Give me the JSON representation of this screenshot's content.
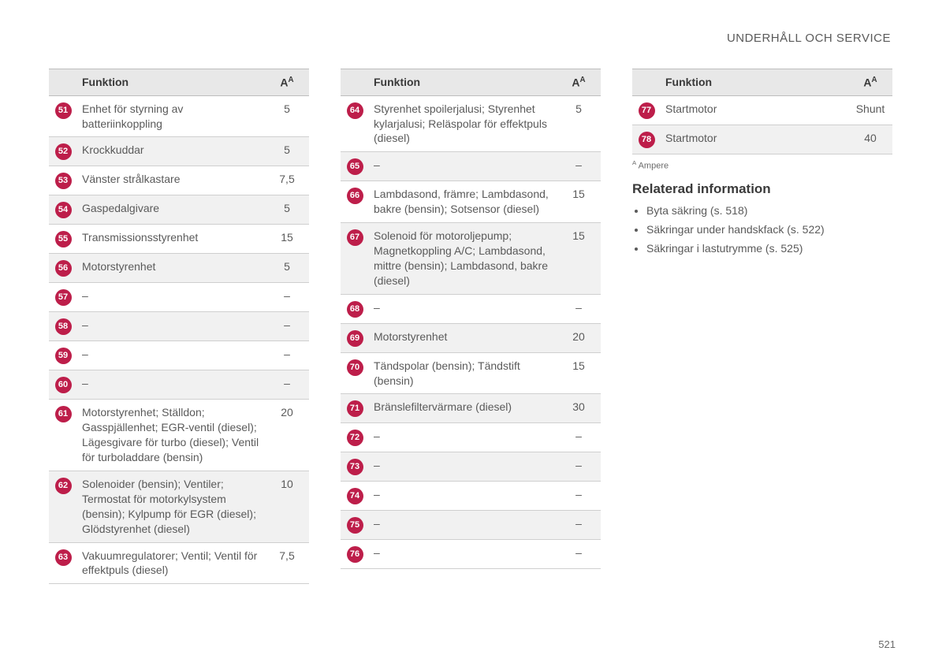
{
  "header": "UNDERHÅLL OCH SERVICE",
  "columns": {
    "funktion": "Funktion",
    "amp_html": "A<sup>A</sup>"
  },
  "footnote": {
    "mark": "A",
    "text": "Ampere"
  },
  "page_number": "521",
  "related": {
    "title": "Relaterad information",
    "items": [
      "Byta säkring (s. 518)",
      "Säkringar under handskfack (s. 522)",
      "Säkringar i lastutrymme (s. 525)"
    ]
  },
  "tables": [
    [
      {
        "n": "51",
        "f": "Enhet för styrning av batteriinkoppling",
        "a": "5",
        "shade": false
      },
      {
        "n": "52",
        "f": "Krockkuddar",
        "a": "5",
        "shade": true
      },
      {
        "n": "53",
        "f": "Vänster strålkastare",
        "a": "7,5",
        "shade": false
      },
      {
        "n": "54",
        "f": "Gaspedalgivare",
        "a": "5",
        "shade": true
      },
      {
        "n": "55",
        "f": "Transmissionsstyrenhet",
        "a": "15",
        "shade": false
      },
      {
        "n": "56",
        "f": "Motorstyrenhet",
        "a": "5",
        "shade": true
      },
      {
        "n": "57",
        "f": "–",
        "a": "–",
        "shade": false
      },
      {
        "n": "58",
        "f": "–",
        "a": "–",
        "shade": true
      },
      {
        "n": "59",
        "f": "–",
        "a": "–",
        "shade": false
      },
      {
        "n": "60",
        "f": "–",
        "a": "–",
        "shade": true
      },
      {
        "n": "61",
        "f": "Motorstyrenhet; Ställdon; Gasspjällenhet; EGR-ventil (diesel); Lägesgivare för turbo (diesel); Ventil för turboladdare (bensin)",
        "a": "20",
        "shade": false
      },
      {
        "n": "62",
        "f": "Solenoider (bensin); Ventiler; Termostat för motorkylsystem (bensin); Kylpump för EGR (diesel); Glödstyrenhet (diesel)",
        "a": "10",
        "shade": true
      },
      {
        "n": "63",
        "f": "Vakuumregulatorer; Ventil; Ventil för effektpuls (diesel)",
        "a": "7,5",
        "shade": false
      }
    ],
    [
      {
        "n": "64",
        "f": "Styrenhet spoilerjalusi; Styrenhet kylarjalusi; Reläspolar för effektpuls (diesel)",
        "a": "5",
        "shade": false
      },
      {
        "n": "65",
        "f": "–",
        "a": "–",
        "shade": true
      },
      {
        "n": "66",
        "f": "Lambdasond, främre; Lambdasond, bakre (bensin); Sotsensor (diesel)",
        "a": "15",
        "shade": false
      },
      {
        "n": "67",
        "f": "Solenoid för motoroljepump; Magnetkoppling A/C; Lambdasond, mittre (bensin); Lambdasond, bakre (diesel)",
        "a": "15",
        "shade": true
      },
      {
        "n": "68",
        "f": "–",
        "a": "–",
        "shade": false
      },
      {
        "n": "69",
        "f": "Motorstyrenhet",
        "a": "20",
        "shade": true
      },
      {
        "n": "70",
        "f": "Tändspolar (bensin); Tändstift (bensin)",
        "a": "15",
        "shade": false
      },
      {
        "n": "71",
        "f": "Bränslefiltervärmare (diesel)",
        "a": "30",
        "shade": true
      },
      {
        "n": "72",
        "f": "–",
        "a": "–",
        "shade": false
      },
      {
        "n": "73",
        "f": "–",
        "a": "–",
        "shade": true
      },
      {
        "n": "74",
        "f": "–",
        "a": "–",
        "shade": false
      },
      {
        "n": "75",
        "f": "–",
        "a": "–",
        "shade": true
      },
      {
        "n": "76",
        "f": "–",
        "a": "–",
        "shade": false
      }
    ],
    [
      {
        "n": "77",
        "f": "Startmotor",
        "a": "Shunt",
        "shade": false
      },
      {
        "n": "78",
        "f": "Startmotor",
        "a": "40",
        "shade": true
      }
    ]
  ]
}
